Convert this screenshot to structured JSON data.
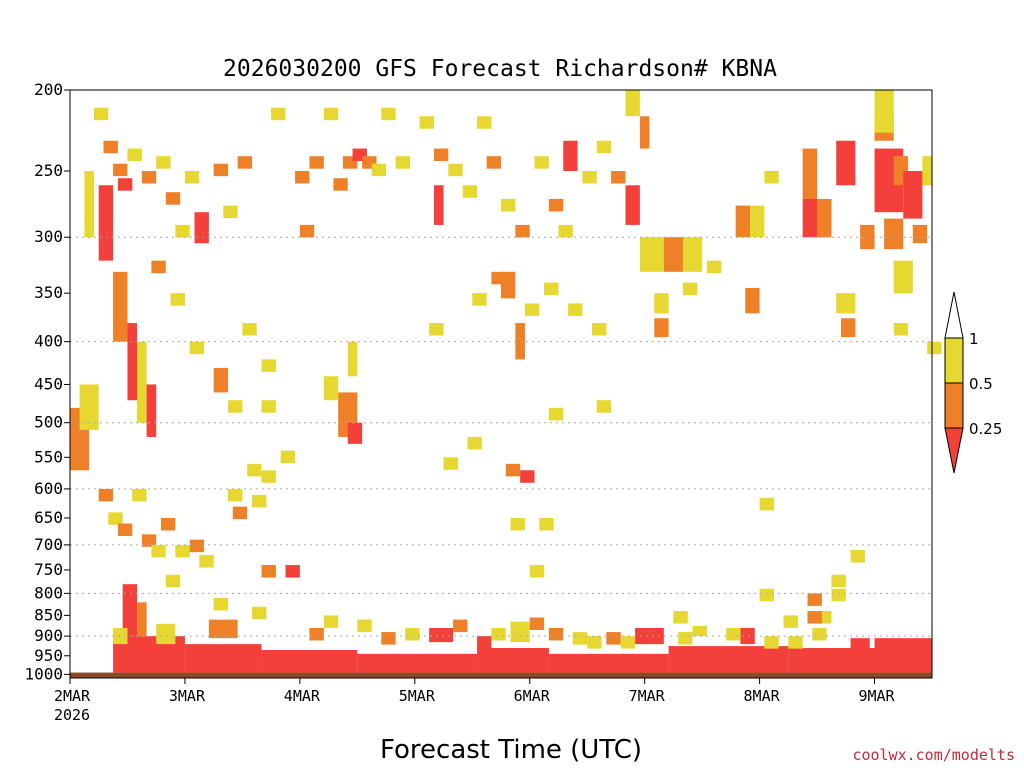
{
  "colors": {
    "c025": "#f4403a",
    "c05": "#ee8028",
    "c1": "#e6d830",
    "ground": "#8b4a27",
    "credit": "#c8283c",
    "gridline": "#aaaaaa"
  },
  "credit": "coolwx.com/modelts",
  "chart_data": {
    "type": "heatmap",
    "title": "2026030200 GFS Forecast Richardson# KBNA",
    "xlabel": "Forecast Time (UTC)",
    "ylabel": "",
    "x_range_hours": [
      0,
      180
    ],
    "y_range_hpa": [
      200,
      1000
    ],
    "y_ticks": [
      200,
      250,
      300,
      350,
      400,
      450,
      500,
      550,
      600,
      650,
      700,
      750,
      800,
      850,
      900,
      950,
      1000
    ],
    "y_gridlines": [
      300,
      400,
      500,
      600,
      700,
      800,
      900
    ],
    "x_ticks": [
      {
        "hour": 0,
        "label": "2MAR",
        "sublabel": "2026"
      },
      {
        "hour": 24,
        "label": "3MAR"
      },
      {
        "hour": 48,
        "label": "4MAR"
      },
      {
        "hour": 72,
        "label": "5MAR"
      },
      {
        "hour": 96,
        "label": "6MAR"
      },
      {
        "hour": 120,
        "label": "7MAR"
      },
      {
        "hour": 144,
        "label": "8MAR"
      },
      {
        "hour": 168,
        "label": "9MAR"
      }
    ],
    "legend": {
      "placement": "right",
      "levels": [
        "0.25",
        "0.5",
        "1"
      ],
      "bins": [
        {
          "range": "< 0.25",
          "color": "#f4403a"
        },
        {
          "range": "0.25–0.5",
          "color": "#ee8028"
        },
        {
          "range": "0.5–1",
          "color": "#e6d830"
        }
      ]
    },
    "regions": [
      {
        "h0": 0,
        "h1": 180,
        "p0": 995,
        "p1": 1000,
        "cat": "g"
      },
      {
        "h0": 9,
        "h1": 24,
        "p0": 900,
        "p1": 995,
        "cat": "r"
      },
      {
        "h0": 24,
        "h1": 40,
        "p0": 920,
        "p1": 995,
        "cat": "r"
      },
      {
        "h0": 40,
        "h1": 60,
        "p0": 935,
        "p1": 995,
        "cat": "r"
      },
      {
        "h0": 60,
        "h1": 85,
        "p0": 945,
        "p1": 995,
        "cat": "r"
      },
      {
        "h0": 85,
        "h1": 100,
        "p0": 930,
        "p1": 995,
        "cat": "r"
      },
      {
        "h0": 100,
        "h1": 125,
        "p0": 945,
        "p1": 995,
        "cat": "r"
      },
      {
        "h0": 125,
        "h1": 150,
        "p0": 925,
        "p1": 995,
        "cat": "r"
      },
      {
        "h0": 150,
        "h1": 180,
        "p0": 930,
        "p1": 995,
        "cat": "r"
      },
      {
        "h0": 168,
        "h1": 180,
        "p0": 905,
        "p1": 935,
        "cat": "r"
      },
      {
        "h0": 11,
        "h1": 14,
        "p0": 780,
        "p1": 900,
        "cat": "r"
      },
      {
        "h0": 14,
        "h1": 16,
        "p0": 820,
        "p1": 900,
        "cat": "o"
      },
      {
        "h0": 9,
        "h1": 12,
        "p0": 880,
        "p1": 920,
        "cat": "y"
      },
      {
        "h0": 18,
        "h1": 22,
        "p0": 870,
        "p1": 920,
        "cat": "y"
      },
      {
        "h0": 29,
        "h1": 35,
        "p0": 860,
        "p1": 905,
        "cat": "o"
      },
      {
        "h0": 75,
        "h1": 80,
        "p0": 880,
        "p1": 915,
        "cat": "r"
      },
      {
        "h0": 92,
        "h1": 96,
        "p0": 865,
        "p1": 915,
        "cat": "y"
      },
      {
        "h0": 118,
        "h1": 124,
        "p0": 880,
        "p1": 920,
        "cat": "r"
      },
      {
        "h0": 140,
        "h1": 143,
        "p0": 880,
        "p1": 920,
        "cat": "r"
      },
      {
        "h0": 130,
        "h1": 133,
        "p0": 875,
        "p1": 900,
        "cat": "y"
      },
      {
        "h0": 163,
        "h1": 167,
        "p0": 905,
        "p1": 935,
        "cat": "r"
      },
      {
        "h0": 0,
        "h1": 4,
        "p0": 480,
        "p1": 570,
        "cat": "o"
      },
      {
        "h0": 2,
        "h1": 6,
        "p0": 450,
        "p1": 510,
        "cat": "y"
      },
      {
        "h0": 12,
        "h1": 14,
        "p0": 380,
        "p1": 470,
        "cat": "r"
      },
      {
        "h0": 14,
        "h1": 16,
        "p0": 400,
        "p1": 500,
        "cat": "y"
      },
      {
        "h0": 16,
        "h1": 18,
        "p0": 450,
        "p1": 520,
        "cat": "r"
      },
      {
        "h0": 6,
        "h1": 9,
        "p0": 260,
        "p1": 320,
        "cat": "r"
      },
      {
        "h0": 9,
        "h1": 12,
        "p0": 330,
        "p1": 400,
        "cat": "o"
      },
      {
        "h0": 3,
        "h1": 5,
        "p0": 250,
        "p1": 300,
        "cat": "y"
      },
      {
        "h0": 26,
        "h1": 29,
        "p0": 280,
        "p1": 305,
        "cat": "r"
      },
      {
        "h0": 56,
        "h1": 60,
        "p0": 460,
        "p1": 520,
        "cat": "o"
      },
      {
        "h0": 58,
        "h1": 61,
        "p0": 500,
        "p1": 530,
        "cat": "r"
      },
      {
        "h0": 53,
        "h1": 56,
        "p0": 440,
        "p1": 470,
        "cat": "y"
      },
      {
        "h0": 58,
        "h1": 60,
        "p0": 400,
        "p1": 440,
        "cat": "y"
      },
      {
        "h0": 30,
        "h1": 33,
        "p0": 430,
        "p1": 460,
        "cat": "o"
      },
      {
        "h0": 90,
        "h1": 93,
        "p0": 330,
        "p1": 355,
        "cat": "o"
      },
      {
        "h0": 93,
        "h1": 95,
        "p0": 380,
        "p1": 420,
        "cat": "o"
      },
      {
        "h0": 76,
        "h1": 78,
        "p0": 260,
        "p1": 290,
        "cat": "r"
      },
      {
        "h0": 103,
        "h1": 106,
        "p0": 230,
        "p1": 250,
        "cat": "r"
      },
      {
        "h0": 116,
        "h1": 119,
        "p0": 260,
        "p1": 290,
        "cat": "r"
      },
      {
        "h0": 119,
        "h1": 124,
        "p0": 300,
        "p1": 330,
        "cat": "y"
      },
      {
        "h0": 124,
        "h1": 128,
        "p0": 300,
        "p1": 330,
        "cat": "o"
      },
      {
        "h0": 128,
        "h1": 132,
        "p0": 300,
        "p1": 330,
        "cat": "y"
      },
      {
        "h0": 116,
        "h1": 119,
        "p0": 200,
        "p1": 215,
        "cat": "y"
      },
      {
        "h0": 119,
        "h1": 121,
        "p0": 215,
        "p1": 235,
        "cat": "o"
      },
      {
        "h0": 139,
        "h1": 142,
        "p0": 275,
        "p1": 300,
        "cat": "o"
      },
      {
        "h0": 142,
        "h1": 145,
        "p0": 275,
        "p1": 300,
        "cat": "y"
      },
      {
        "h0": 122,
        "h1": 125,
        "p0": 350,
        "p1": 370,
        "cat": "y"
      },
      {
        "h0": 122,
        "h1": 125,
        "p0": 375,
        "p1": 395,
        "cat": "o"
      },
      {
        "h0": 141,
        "h1": 144,
        "p0": 345,
        "p1": 370,
        "cat": "o"
      },
      {
        "h0": 153,
        "h1": 156,
        "p0": 235,
        "p1": 270,
        "cat": "o"
      },
      {
        "h0": 153,
        "h1": 159,
        "p0": 270,
        "p1": 300,
        "cat": "r"
      },
      {
        "h0": 156,
        "h1": 159,
        "p0": 270,
        "p1": 300,
        "cat": "o"
      },
      {
        "h0": 160,
        "h1": 164,
        "p0": 230,
        "p1": 260,
        "cat": "r"
      },
      {
        "h0": 160,
        "h1": 164,
        "p0": 350,
        "p1": 370,
        "cat": "y"
      },
      {
        "h0": 161,
        "h1": 164,
        "p0": 375,
        "p1": 395,
        "cat": "o"
      },
      {
        "h0": 165,
        "h1": 168,
        "p0": 290,
        "p1": 310,
        "cat": "o"
      },
      {
        "h0": 168,
        "h1": 172,
        "p0": 215,
        "p1": 230,
        "cat": "o"
      },
      {
        "h0": 168,
        "h1": 174,
        "p0": 235,
        "p1": 280,
        "cat": "r"
      },
      {
        "h0": 172,
        "h1": 175,
        "p0": 240,
        "p1": 260,
        "cat": "o"
      },
      {
        "h0": 174,
        "h1": 178,
        "p0": 250,
        "p1": 285,
        "cat": "r"
      },
      {
        "h0": 170,
        "h1": 174,
        "p0": 285,
        "p1": 310,
        "cat": "o"
      },
      {
        "h0": 172,
        "h1": 176,
        "p0": 320,
        "p1": 350,
        "cat": "y"
      },
      {
        "h0": 176,
        "h1": 179,
        "p0": 290,
        "p1": 305,
        "cat": "o"
      },
      {
        "h0": 168,
        "h1": 172,
        "p0": 200,
        "p1": 225,
        "cat": "y"
      },
      {
        "h0": 178,
        "h1": 180,
        "p0": 240,
        "p1": 260,
        "cat": "y"
      }
    ],
    "cells": [
      {
        "h": 5,
        "p": 210,
        "cat": "y"
      },
      {
        "h": 7,
        "p": 230,
        "cat": "o"
      },
      {
        "h": 9,
        "p": 245,
        "cat": "o"
      },
      {
        "h": 10,
        "p": 255,
        "cat": "r"
      },
      {
        "h": 12,
        "p": 235,
        "cat": "y"
      },
      {
        "h": 15,
        "p": 250,
        "cat": "o"
      },
      {
        "h": 18,
        "p": 240,
        "cat": "y"
      },
      {
        "h": 20,
        "p": 265,
        "cat": "o"
      },
      {
        "h": 22,
        "p": 290,
        "cat": "y"
      },
      {
        "h": 17,
        "p": 320,
        "cat": "o"
      },
      {
        "h": 21,
        "p": 350,
        "cat": "y"
      },
      {
        "h": 24,
        "p": 250,
        "cat": "y"
      },
      {
        "h": 30,
        "p": 245,
        "cat": "o"
      },
      {
        "h": 32,
        "p": 275,
        "cat": "y"
      },
      {
        "h": 35,
        "p": 240,
        "cat": "o"
      },
      {
        "h": 42,
        "p": 210,
        "cat": "y"
      },
      {
        "h": 47,
        "p": 250,
        "cat": "o"
      },
      {
        "h": 48,
        "p": 290,
        "cat": "o"
      },
      {
        "h": 50,
        "p": 240,
        "cat": "o"
      },
      {
        "h": 53,
        "p": 210,
        "cat": "y"
      },
      {
        "h": 55,
        "p": 255,
        "cat": "o"
      },
      {
        "h": 57,
        "p": 240,
        "cat": "o"
      },
      {
        "h": 59,
        "p": 235,
        "cat": "r"
      },
      {
        "h": 61,
        "p": 240,
        "cat": "o"
      },
      {
        "h": 63,
        "p": 245,
        "cat": "y"
      },
      {
        "h": 65,
        "p": 210,
        "cat": "y"
      },
      {
        "h": 68,
        "p": 240,
        "cat": "y"
      },
      {
        "h": 73,
        "p": 215,
        "cat": "y"
      },
      {
        "h": 76,
        "p": 235,
        "cat": "o"
      },
      {
        "h": 79,
        "p": 245,
        "cat": "y"
      },
      {
        "h": 82,
        "p": 260,
        "cat": "y"
      },
      {
        "h": 85,
        "p": 215,
        "cat": "y"
      },
      {
        "h": 87,
        "p": 240,
        "cat": "o"
      },
      {
        "h": 90,
        "p": 270,
        "cat": "y"
      },
      {
        "h": 93,
        "p": 290,
        "cat": "o"
      },
      {
        "h": 97,
        "p": 240,
        "cat": "y"
      },
      {
        "h": 100,
        "p": 270,
        "cat": "o"
      },
      {
        "h": 102,
        "p": 290,
        "cat": "y"
      },
      {
        "h": 107,
        "p": 250,
        "cat": "y"
      },
      {
        "h": 110,
        "p": 230,
        "cat": "y"
      },
      {
        "h": 113,
        "p": 250,
        "cat": "o"
      },
      {
        "h": 84,
        "p": 350,
        "cat": "y"
      },
      {
        "h": 88,
        "p": 330,
        "cat": "o"
      },
      {
        "h": 95,
        "p": 360,
        "cat": "y"
      },
      {
        "h": 99,
        "p": 340,
        "cat": "y"
      },
      {
        "h": 104,
        "p": 360,
        "cat": "y"
      },
      {
        "h": 109,
        "p": 380,
        "cat": "y"
      },
      {
        "h": 75,
        "p": 380,
        "cat": "y"
      },
      {
        "h": 78,
        "p": 550,
        "cat": "y"
      },
      {
        "h": 83,
        "p": 520,
        "cat": "y"
      },
      {
        "h": 91,
        "p": 560,
        "cat": "o"
      },
      {
        "h": 94,
        "p": 570,
        "cat": "r"
      },
      {
        "h": 92,
        "p": 650,
        "cat": "y"
      },
      {
        "h": 96,
        "p": 740,
        "cat": "y"
      },
      {
        "h": 98,
        "p": 650,
        "cat": "y"
      },
      {
        "h": 110,
        "p": 470,
        "cat": "y"
      },
      {
        "h": 100,
        "p": 480,
        "cat": "y"
      },
      {
        "h": 6,
        "p": 600,
        "cat": "o"
      },
      {
        "h": 8,
        "p": 640,
        "cat": "y"
      },
      {
        "h": 10,
        "p": 660,
        "cat": "o"
      },
      {
        "h": 13,
        "p": 600,
        "cat": "y"
      },
      {
        "h": 15,
        "p": 680,
        "cat": "o"
      },
      {
        "h": 17,
        "p": 700,
        "cat": "y"
      },
      {
        "h": 19,
        "p": 650,
        "cat": "o"
      },
      {
        "h": 20,
        "p": 760,
        "cat": "y"
      },
      {
        "h": 22,
        "p": 700,
        "cat": "y"
      },
      {
        "h": 25,
        "p": 690,
        "cat": "o"
      },
      {
        "h": 27,
        "p": 720,
        "cat": "y"
      },
      {
        "h": 30,
        "p": 810,
        "cat": "y"
      },
      {
        "h": 33,
        "p": 600,
        "cat": "y"
      },
      {
        "h": 34,
        "p": 630,
        "cat": "o"
      },
      {
        "h": 37,
        "p": 560,
        "cat": "y"
      },
      {
        "h": 38,
        "p": 830,
        "cat": "y"
      },
      {
        "h": 40,
        "p": 740,
        "cat": "o"
      },
      {
        "h": 45,
        "p": 740,
        "cat": "r"
      },
      {
        "h": 50,
        "p": 880,
        "cat": "o"
      },
      {
        "h": 53,
        "p": 850,
        "cat": "y"
      },
      {
        "h": 60,
        "p": 860,
        "cat": "y"
      },
      {
        "h": 65,
        "p": 890,
        "cat": "o"
      },
      {
        "h": 70,
        "p": 880,
        "cat": "y"
      },
      {
        "h": 80,
        "p": 860,
        "cat": "o"
      },
      {
        "h": 85,
        "p": 900,
        "cat": "r"
      },
      {
        "h": 88,
        "p": 880,
        "cat": "y"
      },
      {
        "h": 96,
        "p": 855,
        "cat": "o"
      },
      {
        "h": 100,
        "p": 880,
        "cat": "o"
      },
      {
        "h": 105,
        "p": 890,
        "cat": "y"
      },
      {
        "h": 108,
        "p": 900,
        "cat": "y"
      },
      {
        "h": 112,
        "p": 890,
        "cat": "o"
      },
      {
        "h": 115,
        "p": 900,
        "cat": "y"
      },
      {
        "h": 127,
        "p": 890,
        "cat": "y"
      },
      {
        "h": 137,
        "p": 880,
        "cat": "y"
      },
      {
        "h": 145,
        "p": 900,
        "cat": "y"
      },
      {
        "h": 150,
        "p": 900,
        "cat": "y"
      },
      {
        "h": 155,
        "p": 880,
        "cat": "y"
      },
      {
        "h": 144,
        "p": 790,
        "cat": "y"
      },
      {
        "h": 149,
        "p": 850,
        "cat": "y"
      },
      {
        "h": 156,
        "p": 840,
        "cat": "y"
      },
      {
        "h": 159,
        "p": 760,
        "cat": "y"
      },
      {
        "h": 159,
        "p": 790,
        "cat": "y"
      },
      {
        "h": 163,
        "p": 710,
        "cat": "y"
      },
      {
        "h": 144,
        "p": 615,
        "cat": "y"
      },
      {
        "h": 154,
        "p": 800,
        "cat": "o"
      },
      {
        "h": 154,
        "p": 840,
        "cat": "o"
      },
      {
        "h": 126,
        "p": 840,
        "cat": "y"
      },
      {
        "h": 40,
        "p": 570,
        "cat": "y"
      },
      {
        "h": 38,
        "p": 610,
        "cat": "y"
      },
      {
        "h": 33,
        "p": 470,
        "cat": "y"
      },
      {
        "h": 40,
        "p": 470,
        "cat": "y"
      },
      {
        "h": 44,
        "p": 540,
        "cat": "y"
      },
      {
        "h": 25,
        "p": 400,
        "cat": "y"
      },
      {
        "h": 36,
        "p": 380,
        "cat": "y"
      },
      {
        "h": 40,
        "p": 420,
        "cat": "y"
      },
      {
        "h": 145,
        "p": 250,
        "cat": "y"
      },
      {
        "h": 128,
        "p": 340,
        "cat": "y"
      },
      {
        "h": 133,
        "p": 320,
        "cat": "y"
      },
      {
        "h": 172,
        "p": 380,
        "cat": "y"
      },
      {
        "h": 179,
        "p": 400,
        "cat": "y"
      }
    ]
  }
}
